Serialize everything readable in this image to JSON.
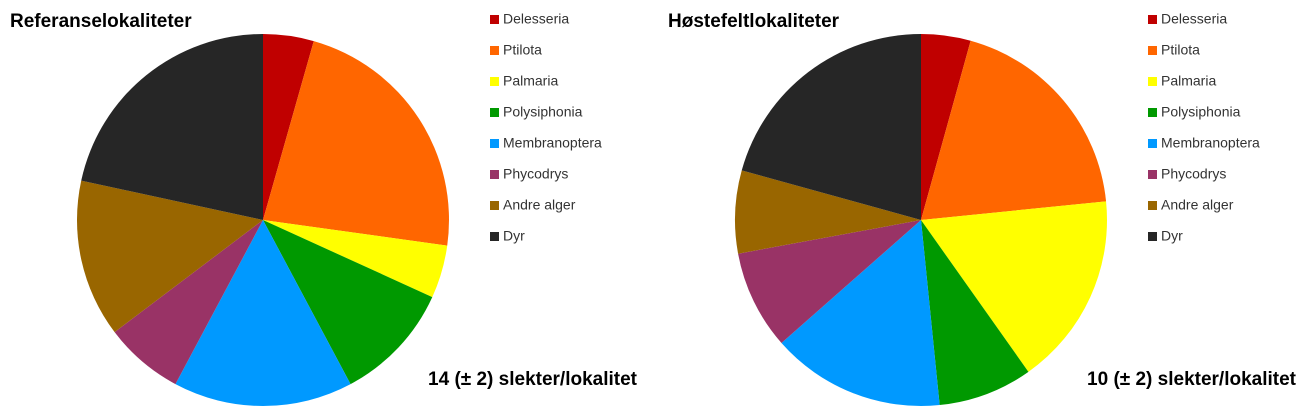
{
  "chart_data": [
    {
      "type": "pie",
      "title": "Referanselokaliteter",
      "annotation": "14 (± 2) slekter/lokalitet",
      "categories": [
        "Delesseria",
        "Ptilota",
        "Palmaria",
        "Polysiphonia",
        "Membranoptera",
        "Phycodrys",
        "Andre alger",
        "Dyr"
      ],
      "values": [
        4.4,
        22.8,
        4.6,
        10.4,
        15.6,
        6.9,
        13.7,
        21.6
      ],
      "colors": [
        "#c00000",
        "#ff6600",
        "#ffff00",
        "#009900",
        "#0099ff",
        "#993366",
        "#996600",
        "#262626"
      ]
    },
    {
      "type": "pie",
      "title": "Høstefeltlokaliteter",
      "annotation": "10 (± 2) slekter/lokalitet",
      "categories": [
        "Delesseria",
        "Ptilota",
        "Palmaria",
        "Polysiphonia",
        "Membranoptera",
        "Phycodrys",
        "Andre alger",
        "Dyr"
      ],
      "values": [
        4.3,
        19.1,
        16.8,
        8.2,
        15.1,
        8.6,
        7.2,
        20.7
      ],
      "colors": [
        "#c00000",
        "#ff6600",
        "#ffff00",
        "#009900",
        "#0099ff",
        "#993366",
        "#996600",
        "#262626"
      ]
    }
  ]
}
